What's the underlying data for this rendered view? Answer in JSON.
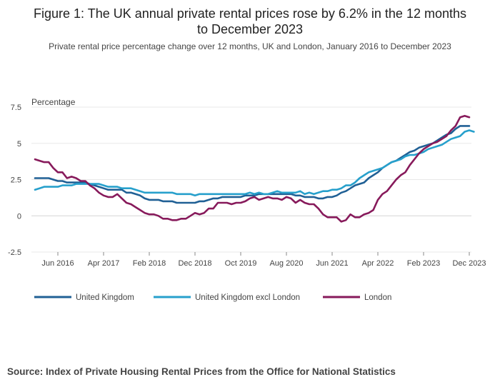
{
  "title_line1": "Figure 1: The UK annual private rental prices rose by 6.2% in the 12 months",
  "title_line2": "to December 2023",
  "subtitle": "Private rental price percentage change over 12 months, UK and London, January 2016 to December 2023",
  "source": "Source: Index of Private Housing Rental Prices from the Office for National Statistics",
  "chart_data": {
    "type": "line",
    "title": "Figure 1: The UK annual private rental prices rose by 6.2% in the 12 months to December 2023",
    "subtitle": "Private rental price percentage change over 12 months, UK and London, January 2016 to December 2023",
    "ylabel": "Percentage",
    "xlabel": "",
    "ylim": [
      -2.5,
      7.5
    ],
    "yticks": [
      -2.5,
      0,
      2.5,
      5,
      7.5
    ],
    "ytick_labels": [
      "-2.5",
      "0",
      "2.5",
      "5",
      "7.5"
    ],
    "xlim": [
      0,
      95
    ],
    "xticks": [
      5,
      15,
      25,
      35,
      45,
      55,
      65,
      75,
      85,
      95
    ],
    "xtick_labels": [
      "Jun 2016",
      "Apr 2017",
      "Feb 2018",
      "Dec 2018",
      "Oct 2019",
      "Aug 2020",
      "Jun 2021",
      "Apr 2022",
      "Feb 2023",
      "Dec 2023"
    ],
    "x_description": "Monthly, index 0 = Jan 2016 ... 95 = Dec 2023",
    "grid": true,
    "legend_position": "bottom",
    "series": [
      {
        "name": "United Kingdom",
        "color": "#206095",
        "values": [
          2.6,
          2.6,
          2.6,
          2.6,
          2.5,
          2.4,
          2.4,
          2.3,
          2.3,
          2.3,
          2.3,
          2.3,
          2.2,
          2.1,
          2.0,
          1.9,
          1.8,
          1.8,
          1.8,
          1.8,
          1.6,
          1.6,
          1.5,
          1.4,
          1.2,
          1.1,
          1.1,
          1.1,
          1.0,
          1.0,
          1.0,
          0.9,
          0.9,
          0.9,
          0.9,
          0.9,
          1.0,
          1.0,
          1.1,
          1.2,
          1.2,
          1.3,
          1.3,
          1.3,
          1.3,
          1.3,
          1.4,
          1.4,
          1.4,
          1.5,
          1.5,
          1.5,
          1.5,
          1.5,
          1.5,
          1.5,
          1.5,
          1.4,
          1.4,
          1.3,
          1.3,
          1.3,
          1.2,
          1.2,
          1.3,
          1.3,
          1.4,
          1.6,
          1.7,
          1.9,
          2.1,
          2.2,
          2.3,
          2.6,
          2.8,
          3.0,
          3.3,
          3.5,
          3.7,
          3.8,
          4.0,
          4.2,
          4.4,
          4.5,
          4.7,
          4.8,
          4.9,
          5.0,
          5.2,
          5.4,
          5.6,
          5.7,
          6.0,
          6.2,
          6.2,
          6.2
        ]
      },
      {
        "name": "United Kingdom excl London",
        "color": "#27a0cc",
        "values": [
          1.8,
          1.9,
          2.0,
          2.0,
          2.0,
          2.0,
          2.1,
          2.1,
          2.1,
          2.2,
          2.2,
          2.2,
          2.2,
          2.2,
          2.2,
          2.1,
          2.0,
          2.0,
          2.0,
          1.9,
          1.9,
          1.9,
          1.8,
          1.7,
          1.6,
          1.6,
          1.6,
          1.6,
          1.6,
          1.6,
          1.6,
          1.5,
          1.5,
          1.5,
          1.5,
          1.4,
          1.5,
          1.5,
          1.5,
          1.5,
          1.5,
          1.5,
          1.5,
          1.5,
          1.5,
          1.5,
          1.5,
          1.6,
          1.5,
          1.6,
          1.5,
          1.5,
          1.6,
          1.7,
          1.6,
          1.6,
          1.6,
          1.6,
          1.7,
          1.5,
          1.6,
          1.5,
          1.6,
          1.7,
          1.7,
          1.8,
          1.8,
          1.9,
          2.1,
          2.1,
          2.3,
          2.6,
          2.8,
          3.0,
          3.1,
          3.2,
          3.3,
          3.5,
          3.7,
          3.8,
          3.9,
          4.1,
          4.2,
          4.2,
          4.3,
          4.4,
          4.6,
          4.7,
          4.8,
          4.9,
          5.1,
          5.3,
          5.4,
          5.5,
          5.8,
          5.9,
          5.8
        ]
      },
      {
        "name": "London",
        "color": "#871a5b",
        "values": [
          3.9,
          3.8,
          3.7,
          3.7,
          3.3,
          3.0,
          3.0,
          2.6,
          2.7,
          2.6,
          2.4,
          2.4,
          2.1,
          1.9,
          1.6,
          1.4,
          1.3,
          1.3,
          1.5,
          1.2,
          0.9,
          0.8,
          0.6,
          0.4,
          0.2,
          0.1,
          0.1,
          0.0,
          -0.2,
          -0.2,
          -0.3,
          -0.3,
          -0.2,
          -0.2,
          0.0,
          0.2,
          0.1,
          0.2,
          0.5,
          0.5,
          0.9,
          0.9,
          0.9,
          0.8,
          0.9,
          0.9,
          1.0,
          1.2,
          1.3,
          1.1,
          1.2,
          1.3,
          1.2,
          1.2,
          1.1,
          1.3,
          1.2,
          0.9,
          1.1,
          0.9,
          0.8,
          0.8,
          0.5,
          0.1,
          -0.1,
          -0.1,
          -0.1,
          -0.4,
          -0.3,
          0.1,
          -0.1,
          -0.1,
          0.1,
          0.2,
          0.4,
          1.1,
          1.5,
          1.7,
          2.1,
          2.5,
          2.8,
          3.0,
          3.5,
          3.9,
          4.3,
          4.6,
          4.8,
          5.0,
          5.1,
          5.3,
          5.5,
          5.9,
          6.2,
          6.8,
          6.9,
          6.8
        ]
      }
    ]
  }
}
